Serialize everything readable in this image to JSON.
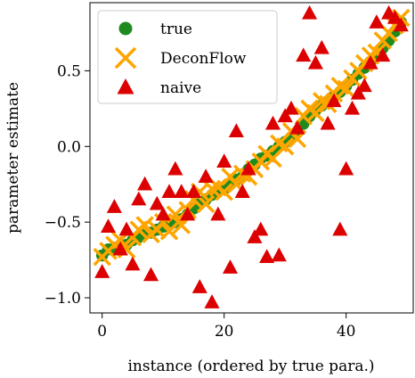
{
  "chart_data": {
    "type": "scatter",
    "xlabel": "instance (ordered by true para.)",
    "ylabel": "parameter estimate",
    "xlim": [
      -2,
      51
    ],
    "ylim": [
      -1.1,
      0.95
    ],
    "xticks": [
      0,
      20,
      40
    ],
    "yticks": [
      -1.0,
      -0.5,
      0.0,
      0.5
    ],
    "ytick_labels": [
      "−1.0",
      "−0.5",
      "0.0",
      "0.5"
    ],
    "grid": false,
    "legend": {
      "position": "top-left"
    },
    "series": [
      {
        "name": "true",
        "marker": "circle",
        "color": "#1f8b1f",
        "x": [
          0,
          1,
          2,
          3,
          4,
          5,
          6,
          7,
          8,
          9,
          10,
          11,
          12,
          13,
          14,
          15,
          16,
          17,
          18,
          19,
          20,
          21,
          22,
          23,
          24,
          25,
          26,
          27,
          28,
          29,
          30,
          31,
          32,
          33,
          34,
          35,
          36,
          37,
          38,
          39,
          40,
          41,
          42,
          43,
          44,
          45,
          46,
          47,
          48,
          49
        ],
        "y": [
          -0.72,
          -0.68,
          -0.67,
          -0.66,
          -0.65,
          -0.62,
          -0.6,
          -0.58,
          -0.57,
          -0.55,
          -0.53,
          -0.52,
          -0.5,
          -0.48,
          -0.45,
          -0.41,
          -0.38,
          -0.35,
          -0.32,
          -0.3,
          -0.28,
          -0.25,
          -0.22,
          -0.2,
          -0.15,
          -0.12,
          -0.08,
          -0.06,
          -0.03,
          0.0,
          0.03,
          0.06,
          0.1,
          0.15,
          0.2,
          0.24,
          0.27,
          0.3,
          0.33,
          0.36,
          0.4,
          0.44,
          0.48,
          0.52,
          0.56,
          0.6,
          0.65,
          0.7,
          0.76,
          0.82
        ]
      },
      {
        "name": "DeconFlow",
        "marker": "x",
        "color": "#ffa500",
        "x": [
          0,
          1,
          2,
          3,
          4,
          5,
          6,
          7,
          8,
          9,
          10,
          11,
          12,
          13,
          14,
          15,
          16,
          17,
          18,
          19,
          20,
          21,
          22,
          23,
          24,
          25,
          26,
          27,
          28,
          29,
          30,
          31,
          32,
          33,
          34,
          35,
          36,
          37,
          38,
          39,
          40,
          41,
          42,
          43,
          44,
          45,
          46,
          47,
          48,
          49
        ],
        "y": [
          -0.73,
          -0.69,
          -0.65,
          -0.62,
          -0.68,
          -0.6,
          -0.55,
          -0.52,
          -0.58,
          -0.55,
          -0.5,
          -0.56,
          -0.45,
          -0.52,
          -0.42,
          -0.35,
          -0.3,
          -0.38,
          -0.28,
          -0.27,
          -0.3,
          -0.2,
          -0.25,
          -0.18,
          -0.2,
          -0.15,
          -0.1,
          -0.05,
          -0.08,
          0.02,
          0.0,
          0.1,
          0.05,
          0.2,
          0.25,
          0.22,
          0.3,
          0.28,
          0.35,
          0.4,
          0.38,
          0.45,
          0.5,
          0.55,
          0.6,
          0.62,
          0.7,
          0.75,
          0.8,
          0.85
        ]
      },
      {
        "name": "naive",
        "marker": "triangle",
        "color": "#dd0000",
        "x": [
          0,
          1,
          2,
          3,
          4,
          5,
          6,
          7,
          8,
          9,
          10,
          11,
          12,
          13,
          14,
          15,
          16,
          17,
          18,
          19,
          20,
          21,
          22,
          23,
          24,
          25,
          26,
          27,
          28,
          29,
          30,
          31,
          32,
          33,
          34,
          35,
          36,
          37,
          38,
          39,
          40,
          41,
          42,
          43,
          44,
          45,
          46,
          47,
          48,
          49
        ],
        "y": [
          -0.83,
          -0.53,
          -0.4,
          -0.68,
          -0.55,
          -0.78,
          -0.35,
          -0.25,
          -0.85,
          -0.38,
          -0.45,
          -0.3,
          -0.15,
          -0.3,
          -0.45,
          -0.3,
          -0.93,
          -0.2,
          -1.03,
          -0.45,
          -0.1,
          -0.8,
          0.1,
          -0.3,
          -0.15,
          -0.6,
          -0.55,
          -0.73,
          0.15,
          -0.72,
          0.2,
          0.25,
          0.12,
          0.6,
          0.88,
          0.55,
          0.65,
          0.15,
          0.3,
          -0.55,
          -0.15,
          0.25,
          0.35,
          0.4,
          0.55,
          0.82,
          0.6,
          0.88,
          0.85,
          0.8
        ]
      }
    ]
  }
}
